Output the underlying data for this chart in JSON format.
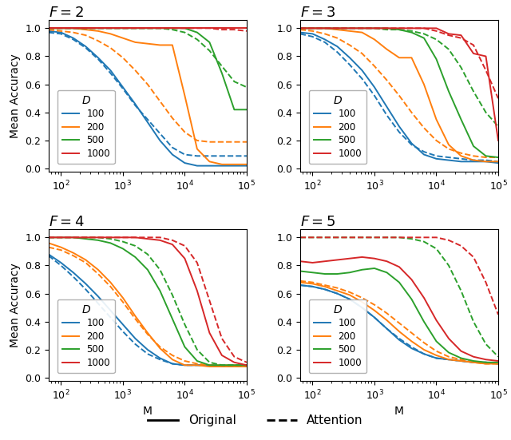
{
  "colors": {
    "100": "#1f77b4",
    "200": "#ff7f0e",
    "500": "#2ca02c",
    "1000": "#d62728"
  },
  "D_values": [
    "100",
    "200",
    "500",
    "1000"
  ],
  "M_values": [
    63,
    100,
    158,
    251,
    398,
    631,
    1000,
    1585,
    2512,
    3981,
    6310,
    10000,
    15849,
    25119,
    39811,
    63096,
    100000
  ],
  "subplots": {
    "F2": {
      "title": "F = 2",
      "original": {
        "100": [
          0.98,
          0.97,
          0.93,
          0.87,
          0.79,
          0.7,
          0.58,
          0.46,
          0.33,
          0.2,
          0.1,
          0.04,
          0.02,
          0.02,
          0.02,
          0.02,
          0.02
        ],
        "200": [
          1.0,
          1.0,
          1.0,
          0.99,
          0.98,
          0.96,
          0.93,
          0.9,
          0.89,
          0.88,
          0.88,
          0.52,
          0.14,
          0.05,
          0.03,
          0.03,
          0.03
        ],
        "500": [
          1.0,
          1.0,
          1.0,
          1.0,
          1.0,
          1.0,
          1.0,
          1.0,
          1.0,
          1.0,
          1.0,
          1.0,
          0.97,
          0.9,
          0.68,
          0.42,
          0.42
        ],
        "1000": [
          1.0,
          1.0,
          1.0,
          1.0,
          1.0,
          1.0,
          1.0,
          1.0,
          1.0,
          1.0,
          1.0,
          1.0,
          1.0,
          1.0,
          1.0,
          1.0,
          1.0
        ]
      },
      "attention": {
        "100": [
          0.97,
          0.96,
          0.92,
          0.86,
          0.78,
          0.68,
          0.57,
          0.45,
          0.35,
          0.25,
          0.15,
          0.1,
          0.09,
          0.09,
          0.09,
          0.09,
          0.09
        ],
        "200": [
          0.99,
          0.98,
          0.97,
          0.95,
          0.91,
          0.86,
          0.79,
          0.7,
          0.6,
          0.48,
          0.36,
          0.26,
          0.2,
          0.19,
          0.19,
          0.19,
          0.19
        ],
        "500": [
          1.0,
          1.0,
          1.0,
          1.0,
          1.0,
          1.0,
          1.0,
          1.0,
          1.0,
          1.0,
          0.99,
          0.97,
          0.92,
          0.84,
          0.73,
          0.62,
          0.58
        ],
        "1000": [
          1.0,
          1.0,
          1.0,
          1.0,
          1.0,
          1.0,
          1.0,
          1.0,
          1.0,
          1.0,
          1.0,
          1.0,
          1.0,
          1.0,
          0.99,
          0.99,
          0.98
        ]
      }
    },
    "F3": {
      "title": "F = 3",
      "original": {
        "100": [
          0.97,
          0.96,
          0.92,
          0.87,
          0.79,
          0.7,
          0.58,
          0.44,
          0.3,
          0.18,
          0.1,
          0.07,
          0.06,
          0.05,
          0.05,
          0.05,
          0.04
        ],
        "200": [
          1.0,
          1.0,
          1.0,
          0.99,
          0.98,
          0.97,
          0.92,
          0.85,
          0.79,
          0.79,
          0.6,
          0.35,
          0.17,
          0.09,
          0.06,
          0.05,
          0.05
        ],
        "500": [
          1.0,
          1.0,
          1.0,
          1.0,
          1.0,
          1.0,
          1.0,
          1.0,
          0.99,
          0.97,
          0.93,
          0.78,
          0.55,
          0.35,
          0.16,
          0.09,
          0.08
        ],
        "1000": [
          1.0,
          1.0,
          1.0,
          1.0,
          1.0,
          1.0,
          1.0,
          1.0,
          1.0,
          1.0,
          1.0,
          1.0,
          0.96,
          0.95,
          0.82,
          0.8,
          0.2
        ]
      },
      "attention": {
        "100": [
          0.96,
          0.94,
          0.9,
          0.83,
          0.74,
          0.64,
          0.52,
          0.38,
          0.26,
          0.17,
          0.12,
          0.09,
          0.08,
          0.07,
          0.06,
          0.06,
          0.05
        ],
        "200": [
          0.99,
          0.98,
          0.96,
          0.93,
          0.88,
          0.82,
          0.73,
          0.63,
          0.52,
          0.4,
          0.29,
          0.2,
          0.14,
          0.11,
          0.09,
          0.08,
          0.08
        ],
        "500": [
          1.0,
          1.0,
          1.0,
          1.0,
          1.0,
          1.0,
          1.0,
          0.99,
          0.99,
          0.98,
          0.96,
          0.92,
          0.85,
          0.72,
          0.55,
          0.4,
          0.3
        ],
        "1000": [
          1.0,
          1.0,
          1.0,
          1.0,
          1.0,
          1.0,
          1.0,
          1.0,
          1.0,
          1.0,
          1.0,
          0.98,
          0.95,
          0.93,
          0.88,
          0.7,
          0.5
        ]
      }
    },
    "F4": {
      "title": "F = 4",
      "original": {
        "100": [
          0.88,
          0.82,
          0.75,
          0.67,
          0.58,
          0.48,
          0.38,
          0.28,
          0.2,
          0.14,
          0.1,
          0.09,
          0.09,
          0.09,
          0.08,
          0.08,
          0.08
        ],
        "200": [
          0.96,
          0.93,
          0.89,
          0.84,
          0.77,
          0.68,
          0.57,
          0.44,
          0.32,
          0.21,
          0.13,
          0.09,
          0.09,
          0.08,
          0.08,
          0.08,
          0.08
        ],
        "500": [
          1.0,
          1.0,
          1.0,
          0.99,
          0.98,
          0.96,
          0.92,
          0.86,
          0.77,
          0.62,
          0.42,
          0.22,
          0.12,
          0.09,
          0.09,
          0.09,
          0.09
        ],
        "1000": [
          1.0,
          1.0,
          1.0,
          1.0,
          1.0,
          1.0,
          1.0,
          1.0,
          0.99,
          0.98,
          0.95,
          0.85,
          0.62,
          0.32,
          0.16,
          0.11,
          0.09
        ]
      },
      "attention": {
        "100": [
          0.87,
          0.8,
          0.72,
          0.63,
          0.53,
          0.43,
          0.33,
          0.24,
          0.17,
          0.13,
          0.1,
          0.09,
          0.09,
          0.09,
          0.09,
          0.09,
          0.09
        ],
        "200": [
          0.93,
          0.91,
          0.87,
          0.82,
          0.74,
          0.65,
          0.54,
          0.42,
          0.31,
          0.22,
          0.16,
          0.12,
          0.1,
          0.09,
          0.09,
          0.09,
          0.09
        ],
        "500": [
          1.0,
          1.0,
          1.0,
          1.0,
          1.0,
          0.99,
          0.97,
          0.94,
          0.88,
          0.77,
          0.59,
          0.38,
          0.2,
          0.11,
          0.09,
          0.09,
          0.09
        ],
        "1000": [
          1.0,
          1.0,
          1.0,
          1.0,
          1.0,
          1.0,
          1.0,
          1.0,
          1.0,
          1.0,
          0.98,
          0.94,
          0.82,
          0.55,
          0.28,
          0.15,
          0.11
        ]
      }
    },
    "F5": {
      "title": "F = 5",
      "original": {
        "100": [
          0.66,
          0.65,
          0.63,
          0.6,
          0.56,
          0.5,
          0.43,
          0.35,
          0.27,
          0.21,
          0.17,
          0.14,
          0.13,
          0.12,
          0.11,
          0.11,
          0.1
        ],
        "200": [
          0.68,
          0.67,
          0.65,
          0.62,
          0.59,
          0.54,
          0.48,
          0.41,
          0.33,
          0.26,
          0.2,
          0.16,
          0.13,
          0.12,
          0.11,
          0.1,
          0.1
        ],
        "500": [
          0.76,
          0.75,
          0.74,
          0.74,
          0.75,
          0.77,
          0.78,
          0.75,
          0.68,
          0.56,
          0.4,
          0.26,
          0.18,
          0.14,
          0.12,
          0.11,
          0.11
        ],
        "1000": [
          0.83,
          0.82,
          0.83,
          0.84,
          0.85,
          0.86,
          0.85,
          0.83,
          0.79,
          0.7,
          0.57,
          0.41,
          0.28,
          0.19,
          0.15,
          0.13,
          0.12
        ]
      },
      "attention": {
        "100": [
          0.66,
          0.65,
          0.63,
          0.6,
          0.56,
          0.5,
          0.43,
          0.35,
          0.28,
          0.22,
          0.17,
          0.14,
          0.13,
          0.12,
          0.11,
          0.11,
          0.1
        ],
        "200": [
          0.69,
          0.68,
          0.66,
          0.64,
          0.61,
          0.57,
          0.52,
          0.46,
          0.39,
          0.32,
          0.25,
          0.19,
          0.15,
          0.13,
          0.11,
          0.1,
          0.1
        ],
        "500": [
          1.0,
          1.0,
          1.0,
          1.0,
          1.0,
          1.0,
          1.0,
          1.0,
          1.0,
          0.99,
          0.97,
          0.92,
          0.8,
          0.62,
          0.4,
          0.24,
          0.15
        ],
        "1000": [
          1.0,
          1.0,
          1.0,
          1.0,
          1.0,
          1.0,
          1.0,
          1.0,
          1.0,
          1.0,
          1.0,
          1.0,
          0.98,
          0.94,
          0.86,
          0.68,
          0.45
        ]
      }
    }
  },
  "xlabel": "M",
  "ylabel": "Mean Accuracy",
  "xlim": [
    63,
    100000
  ],
  "ylim": [
    -0.02,
    1.06
  ],
  "yticks": [
    0.0,
    0.2,
    0.4,
    0.6,
    0.8,
    1.0
  ]
}
